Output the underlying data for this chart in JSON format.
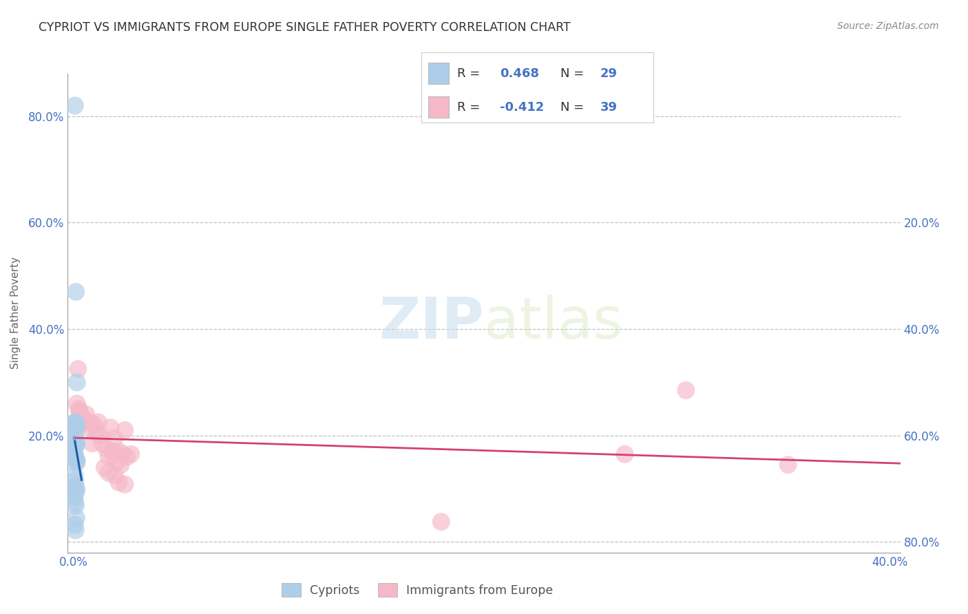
{
  "title": "CYPRIOT VS IMMIGRANTS FROM EUROPE SINGLE FATHER POVERTY CORRELATION CHART",
  "source": "Source: ZipAtlas.com",
  "ylabel": "Single Father Poverty",
  "watermark_zip": "ZIP",
  "watermark_atlas": "atlas",
  "legend_entries": [
    {
      "label": "Cypriots",
      "R": 0.468,
      "N": 29,
      "color": "#aecde8"
    },
    {
      "label": "Immigrants from Europe",
      "R": -0.412,
      "N": 39,
      "color": "#f5b8c8"
    }
  ],
  "cypriot_scatter": [
    [
      0.0005,
      0.82
    ],
    [
      0.001,
      0.47
    ],
    [
      0.0015,
      0.3
    ],
    [
      0.0004,
      0.225
    ],
    [
      0.0006,
      0.215
    ],
    [
      0.0009,
      0.225
    ],
    [
      0.001,
      0.21
    ],
    [
      0.0013,
      0.22
    ],
    [
      0.0005,
      0.195
    ],
    [
      0.0007,
      0.185
    ],
    [
      0.001,
      0.18
    ],
    [
      0.0014,
      0.185
    ],
    [
      0.0004,
      0.165
    ],
    [
      0.0006,
      0.16
    ],
    [
      0.0008,
      0.158
    ],
    [
      0.001,
      0.155
    ],
    [
      0.0012,
      0.148
    ],
    [
      0.0015,
      0.152
    ],
    [
      0.0004,
      0.125
    ],
    [
      0.0007,
      0.115
    ],
    [
      0.0009,
      0.105
    ],
    [
      0.001,
      0.095
    ],
    [
      0.0013,
      0.098
    ],
    [
      0.0004,
      0.085
    ],
    [
      0.0006,
      0.075
    ],
    [
      0.0009,
      0.068
    ],
    [
      0.0012,
      0.045
    ],
    [
      0.0005,
      0.032
    ],
    [
      0.0008,
      0.022
    ]
  ],
  "immigrant_scatter": [
    [
      0.002,
      0.325
    ],
    [
      0.0025,
      0.245
    ],
    [
      0.003,
      0.235
    ],
    [
      0.004,
      0.235
    ],
    [
      0.005,
      0.225
    ],
    [
      0.006,
      0.24
    ],
    [
      0.007,
      0.215
    ],
    [
      0.008,
      0.225
    ],
    [
      0.009,
      0.185
    ],
    [
      0.01,
      0.22
    ],
    [
      0.011,
      0.205
    ],
    [
      0.012,
      0.225
    ],
    [
      0.013,
      0.2
    ],
    [
      0.014,
      0.185
    ],
    [
      0.0015,
      0.26
    ],
    [
      0.0025,
      0.25
    ],
    [
      0.003,
      0.22
    ],
    [
      0.025,
      0.21
    ],
    [
      0.02,
      0.195
    ],
    [
      0.018,
      0.215
    ],
    [
      0.016,
      0.175
    ],
    [
      0.022,
      0.17
    ],
    [
      0.019,
      0.17
    ],
    [
      0.024,
      0.165
    ],
    [
      0.0018,
      0.225
    ],
    [
      0.017,
      0.16
    ],
    [
      0.021,
      0.15
    ],
    [
      0.023,
      0.145
    ],
    [
      0.026,
      0.16
    ],
    [
      0.028,
      0.165
    ],
    [
      0.015,
      0.14
    ],
    [
      0.017,
      0.13
    ],
    [
      0.02,
      0.125
    ],
    [
      0.022,
      0.112
    ],
    [
      0.025,
      0.108
    ],
    [
      0.27,
      0.165
    ],
    [
      0.35,
      0.145
    ],
    [
      0.18,
      0.038
    ],
    [
      0.3,
      0.285
    ]
  ],
  "xlim": [
    -0.003,
    0.405
  ],
  "ylim": [
    -0.02,
    0.88
  ],
  "xticks": [
    0.0,
    0.4
  ],
  "xtick_labels": [
    "0.0%",
    "40.0%"
  ],
  "yticks": [
    0.0,
    0.2,
    0.4,
    0.6,
    0.8
  ],
  "ytick_labels": [
    "",
    "20.0%",
    "40.0%",
    "60.0%",
    "80.0%"
  ],
  "right_ytick_labels": [
    "80.0%",
    "60.0%",
    "40.0%",
    "20.0%",
    ""
  ],
  "cypriot_color": "#aecde8",
  "cypriot_line_color": "#1a5fa8",
  "cypriot_dash_color": "#7bafd4",
  "immigrant_color": "#f5b8c8",
  "immigrant_line_color": "#d44070",
  "background_color": "#ffffff",
  "grid_color": "#bbbbbb",
  "title_color": "#333333",
  "source_color": "#888888",
  "axis_label_color": "#4472c4",
  "tick_label_color": "#555555"
}
